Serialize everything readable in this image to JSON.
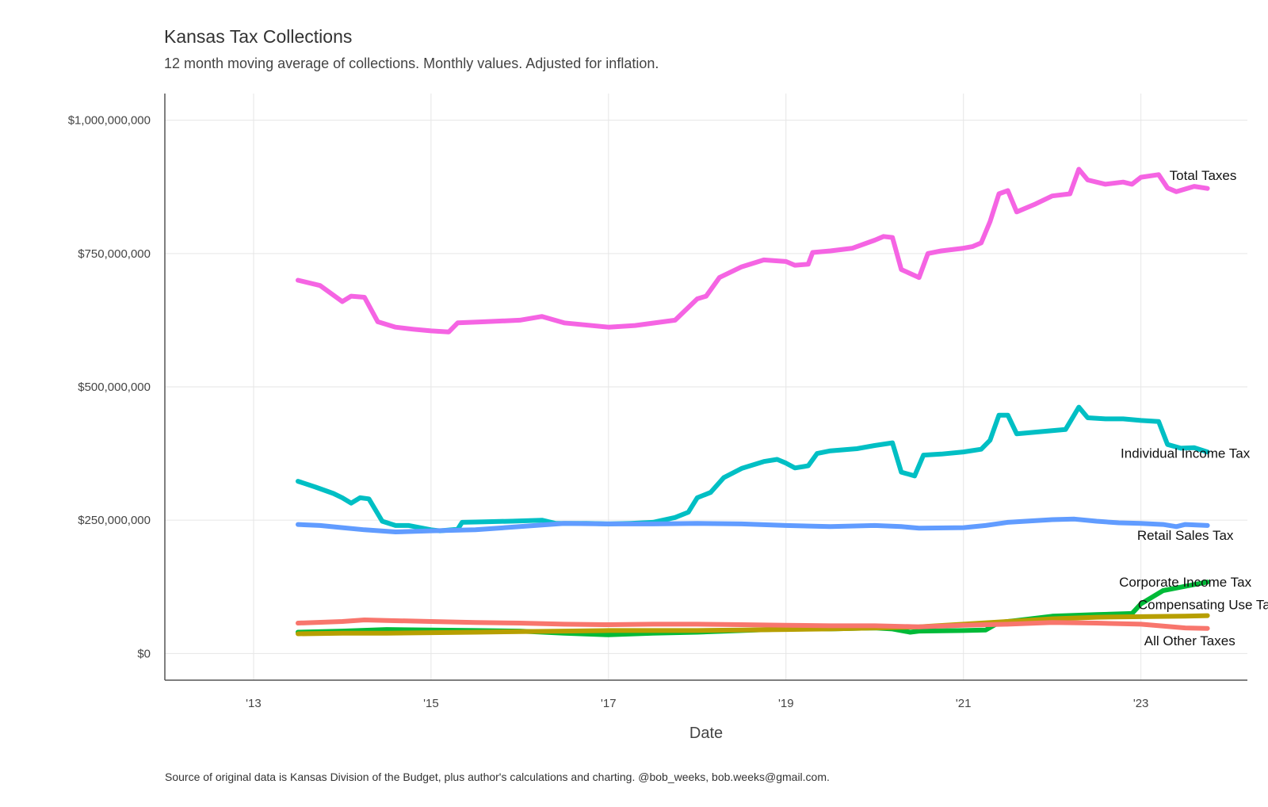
{
  "chart_data": {
    "type": "line",
    "title": "Kansas Tax Collections",
    "subtitle": "12 month moving average of collections. Monthly values. Adjusted for inflation.",
    "xlabel": "Date",
    "ylabel": "",
    "caption": "Source of original data is Kansas Division of the Budget, plus author's calculations and charting. @bob_weeks, bob.weeks@gmail.com.",
    "xlim": [
      2012.0,
      2024.2
    ],
    "ylim": [
      -50000000,
      1050000000
    ],
    "x_ticks": [
      2013,
      2015,
      2017,
      2019,
      2021,
      2023
    ],
    "x_tick_labels": [
      "'13",
      "'15",
      "'17",
      "'19",
      "'21",
      "'23"
    ],
    "y_ticks": [
      0,
      250000000,
      500000000,
      750000000,
      1000000000
    ],
    "y_tick_labels": [
      "$0",
      "$250,000,000",
      "$500,000,000",
      "$750,000,000",
      "$1,000,000,000"
    ],
    "grid": true,
    "legend": "none (direct labels at line ends)",
    "series": [
      {
        "name": "Total Taxes",
        "color": "#f564e3",
        "points": [
          [
            2013.5,
            700
          ],
          [
            2013.75,
            690
          ],
          [
            2014.0,
            660
          ],
          [
            2014.1,
            670
          ],
          [
            2014.25,
            668
          ],
          [
            2014.4,
            622
          ],
          [
            2014.6,
            612
          ],
          [
            2014.8,
            608
          ],
          [
            2015.0,
            605
          ],
          [
            2015.2,
            603
          ],
          [
            2015.3,
            620
          ],
          [
            2015.6,
            622
          ],
          [
            2016.0,
            625
          ],
          [
            2016.25,
            632
          ],
          [
            2016.5,
            620
          ],
          [
            2017.0,
            612
          ],
          [
            2017.3,
            615
          ],
          [
            2017.75,
            625
          ],
          [
            2018.0,
            665
          ],
          [
            2018.1,
            670
          ],
          [
            2018.25,
            705
          ],
          [
            2018.5,
            725
          ],
          [
            2018.75,
            738
          ],
          [
            2019.0,
            735
          ],
          [
            2019.1,
            728
          ],
          [
            2019.25,
            730
          ],
          [
            2019.3,
            752
          ],
          [
            2019.5,
            755
          ],
          [
            2019.75,
            760
          ],
          [
            2020.0,
            775
          ],
          [
            2020.1,
            782
          ],
          [
            2020.2,
            780
          ],
          [
            2020.3,
            720
          ],
          [
            2020.5,
            705
          ],
          [
            2020.6,
            750
          ],
          [
            2020.75,
            755
          ],
          [
            2021.0,
            760
          ],
          [
            2021.1,
            763
          ],
          [
            2021.2,
            770
          ],
          [
            2021.3,
            810
          ],
          [
            2021.4,
            862
          ],
          [
            2021.5,
            868
          ],
          [
            2021.6,
            828
          ],
          [
            2021.8,
            842
          ],
          [
            2022.0,
            858
          ],
          [
            2022.2,
            862
          ],
          [
            2022.3,
            908
          ],
          [
            2022.4,
            888
          ],
          [
            2022.6,
            880
          ],
          [
            2022.8,
            884
          ],
          [
            2022.9,
            880
          ],
          [
            2023.0,
            893
          ],
          [
            2023.2,
            898
          ],
          [
            2023.3,
            873
          ],
          [
            2023.4,
            866
          ],
          [
            2023.6,
            876
          ],
          [
            2023.75,
            872
          ]
        ],
        "label_pos": [
          2023.7,
          897
        ]
      },
      {
        "name": "Individual Income Tax",
        "color": "#00bfc4",
        "points": [
          [
            2013.5,
            323
          ],
          [
            2013.7,
            312
          ],
          [
            2013.9,
            300
          ],
          [
            2014.0,
            292
          ],
          [
            2014.1,
            282
          ],
          [
            2014.2,
            292
          ],
          [
            2014.3,
            290
          ],
          [
            2014.45,
            248
          ],
          [
            2014.6,
            240
          ],
          [
            2014.75,
            240
          ],
          [
            2015.0,
            232
          ],
          [
            2015.1,
            230
          ],
          [
            2015.3,
            233
          ],
          [
            2015.35,
            246
          ],
          [
            2015.6,
            247
          ],
          [
            2015.9,
            248
          ],
          [
            2016.25,
            250
          ],
          [
            2016.4,
            244
          ],
          [
            2016.75,
            244
          ],
          [
            2017.0,
            243
          ],
          [
            2017.25,
            244
          ],
          [
            2017.5,
            246
          ],
          [
            2017.75,
            255
          ],
          [
            2017.9,
            265
          ],
          [
            2018.0,
            292
          ],
          [
            2018.15,
            302
          ],
          [
            2018.3,
            330
          ],
          [
            2018.5,
            347
          ],
          [
            2018.75,
            360
          ],
          [
            2018.9,
            364
          ],
          [
            2019.0,
            357
          ],
          [
            2019.1,
            348
          ],
          [
            2019.25,
            352
          ],
          [
            2019.35,
            375
          ],
          [
            2019.5,
            380
          ],
          [
            2019.8,
            384
          ],
          [
            2020.0,
            390
          ],
          [
            2020.2,
            395
          ],
          [
            2020.3,
            340
          ],
          [
            2020.45,
            333
          ],
          [
            2020.55,
            372
          ],
          [
            2020.75,
            374
          ],
          [
            2021.0,
            378
          ],
          [
            2021.2,
            383
          ],
          [
            2021.3,
            400
          ],
          [
            2021.4,
            447
          ],
          [
            2021.5,
            447
          ],
          [
            2021.6,
            412
          ],
          [
            2021.8,
            415
          ],
          [
            2022.0,
            418
          ],
          [
            2022.15,
            420
          ],
          [
            2022.3,
            462
          ],
          [
            2022.4,
            442
          ],
          [
            2022.6,
            440
          ],
          [
            2022.8,
            440
          ],
          [
            2023.0,
            437
          ],
          [
            2023.2,
            435
          ],
          [
            2023.3,
            392
          ],
          [
            2023.45,
            385
          ],
          [
            2023.6,
            386
          ],
          [
            2023.75,
            378
          ]
        ],
        "label_pos": [
          2023.5,
          376
        ]
      },
      {
        "name": "Retail Sales Tax",
        "color": "#619cff",
        "points": [
          [
            2013.5,
            242
          ],
          [
            2013.75,
            240
          ],
          [
            2014.0,
            236
          ],
          [
            2014.25,
            232
          ],
          [
            2014.6,
            228
          ],
          [
            2015.0,
            230
          ],
          [
            2015.5,
            232
          ],
          [
            2016.0,
            238
          ],
          [
            2016.5,
            244
          ],
          [
            2017.0,
            243
          ],
          [
            2017.5,
            243
          ],
          [
            2018.0,
            244
          ],
          [
            2018.5,
            243
          ],
          [
            2019.0,
            240
          ],
          [
            2019.5,
            238
          ],
          [
            2020.0,
            240
          ],
          [
            2020.3,
            238
          ],
          [
            2020.5,
            235
          ],
          [
            2021.0,
            236
          ],
          [
            2021.25,
            240
          ],
          [
            2021.5,
            246
          ],
          [
            2022.0,
            251
          ],
          [
            2022.25,
            252
          ],
          [
            2022.5,
            248
          ],
          [
            2022.75,
            245
          ],
          [
            2023.0,
            244
          ],
          [
            2023.25,
            242
          ],
          [
            2023.4,
            238
          ],
          [
            2023.5,
            242
          ],
          [
            2023.75,
            240
          ]
        ],
        "label_pos": [
          2023.5,
          222
        ]
      },
      {
        "name": "Corporate Income Tax",
        "color": "#00ba38",
        "points": [
          [
            2013.5,
            40
          ],
          [
            2014.0,
            42
          ],
          [
            2014.5,
            45
          ],
          [
            2015.0,
            44
          ],
          [
            2015.5,
            43
          ],
          [
            2016.0,
            42
          ],
          [
            2016.5,
            38
          ],
          [
            2017.0,
            35
          ],
          [
            2017.5,
            38
          ],
          [
            2018.0,
            40
          ],
          [
            2018.5,
            43
          ],
          [
            2019.0,
            46
          ],
          [
            2019.5,
            46
          ],
          [
            2020.0,
            48
          ],
          [
            2020.2,
            46
          ],
          [
            2020.4,
            40
          ],
          [
            2020.5,
            42
          ],
          [
            2021.0,
            43
          ],
          [
            2021.25,
            44
          ],
          [
            2021.4,
            58
          ],
          [
            2021.6,
            62
          ],
          [
            2022.0,
            70
          ],
          [
            2022.5,
            73
          ],
          [
            2022.9,
            75
          ],
          [
            2023.0,
            93
          ],
          [
            2023.25,
            118
          ],
          [
            2023.5,
            126
          ],
          [
            2023.75,
            134
          ]
        ],
        "label_pos": [
          2023.5,
          134
        ]
      },
      {
        "name": "Compensating Use Tax",
        "color": "#b79f00",
        "points": [
          [
            2013.5,
            37
          ],
          [
            2014.0,
            38
          ],
          [
            2014.5,
            38
          ],
          [
            2015.0,
            39
          ],
          [
            2015.5,
            40
          ],
          [
            2016.0,
            41
          ],
          [
            2016.5,
            42
          ],
          [
            2017.0,
            43
          ],
          [
            2017.5,
            43
          ],
          [
            2018.0,
            43
          ],
          [
            2018.5,
            44
          ],
          [
            2019.0,
            45
          ],
          [
            2019.5,
            46
          ],
          [
            2020.0,
            48
          ],
          [
            2020.5,
            50
          ],
          [
            2021.0,
            55
          ],
          [
            2021.5,
            60
          ],
          [
            2022.0,
            65
          ],
          [
            2022.5,
            68
          ],
          [
            2023.0,
            69
          ],
          [
            2023.5,
            70
          ],
          [
            2023.75,
            71
          ]
        ],
        "label_pos": [
          2023.75,
          92
        ]
      },
      {
        "name": "All Other Taxes",
        "color": "#f8766d",
        "points": [
          [
            2013.5,
            57
          ],
          [
            2014.0,
            60
          ],
          [
            2014.25,
            63
          ],
          [
            2014.5,
            62
          ],
          [
            2015.0,
            60
          ],
          [
            2015.5,
            58
          ],
          [
            2016.0,
            57
          ],
          [
            2016.5,
            55
          ],
          [
            2017.0,
            54
          ],
          [
            2017.5,
            55
          ],
          [
            2018.0,
            55
          ],
          [
            2018.5,
            54
          ],
          [
            2019.0,
            53
          ],
          [
            2019.5,
            52
          ],
          [
            2020.0,
            52
          ],
          [
            2020.5,
            50
          ],
          [
            2021.0,
            53
          ],
          [
            2021.5,
            55
          ],
          [
            2022.0,
            58
          ],
          [
            2022.5,
            57
          ],
          [
            2023.0,
            55
          ],
          [
            2023.5,
            48
          ],
          [
            2023.75,
            47
          ]
        ],
        "label_pos": [
          2023.55,
          24
        ]
      }
    ]
  }
}
